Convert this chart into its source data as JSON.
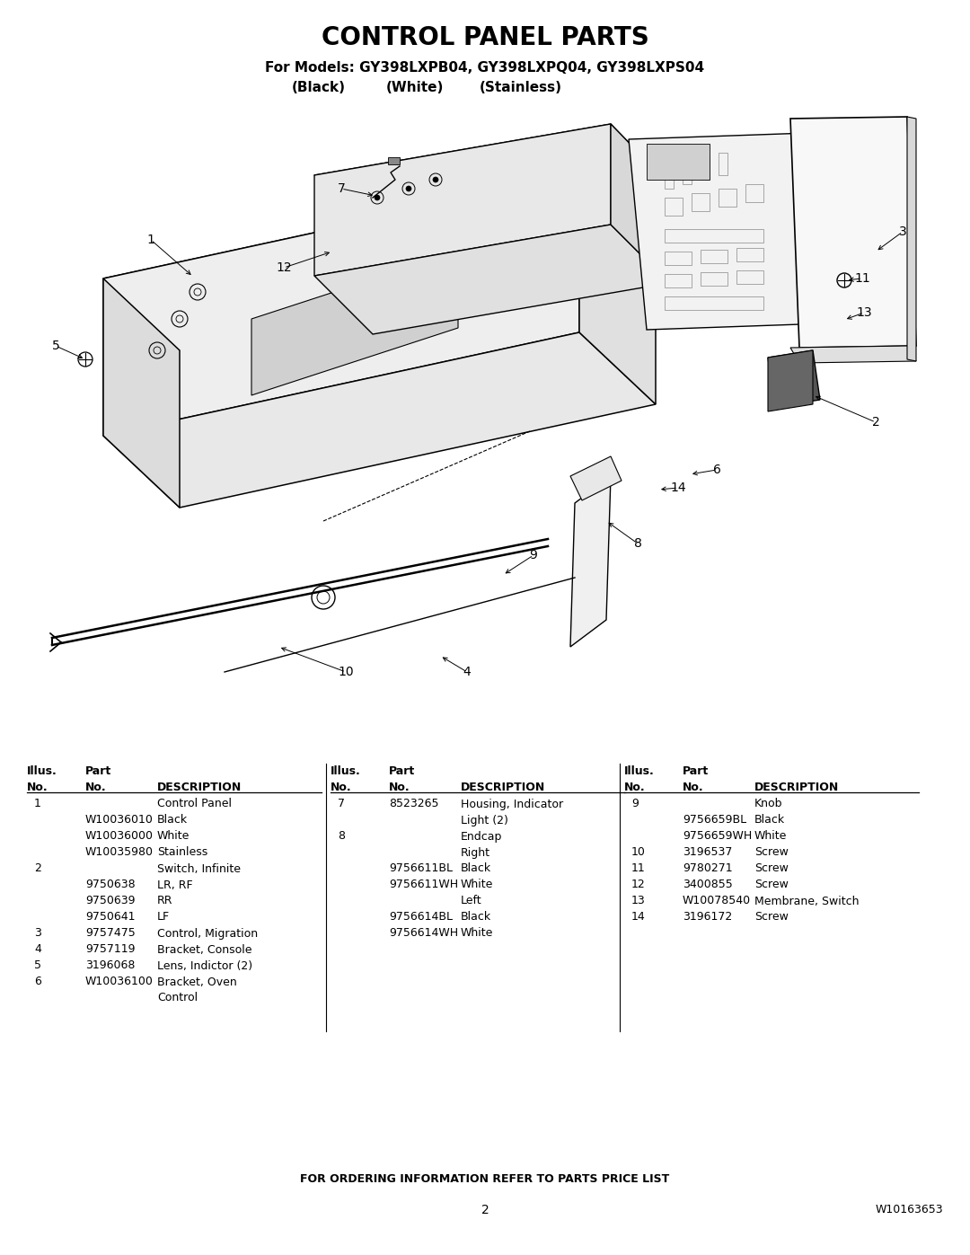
{
  "title": "CONTROL PANEL PARTS",
  "subtitle1": "For Models: GY398LXPB04, GY398LXPQ04, GY398LXPS04",
  "subtitle2_parts": [
    "(Black)",
    "(White)",
    "(Stainless)"
  ],
  "bg_color": "#ffffff",
  "title_fontsize": 20,
  "subtitle_fontsize": 11,
  "footer_text": "FOR ORDERING INFORMATION REFER TO PARTS PRICE LIST",
  "page_num": "2",
  "doc_num": "W10163653",
  "table_col1": [
    [
      "Illus.",
      "Part",
      ""
    ],
    [
      "No.",
      "No.",
      "DESCRIPTION"
    ],
    [
      "1",
      "",
      "Control Panel"
    ],
    [
      "",
      "W10036010",
      "Black"
    ],
    [
      "",
      "W10036000",
      "White"
    ],
    [
      "",
      "W10035980",
      "Stainless"
    ],
    [
      "2",
      "",
      "Switch, Infinite"
    ],
    [
      "",
      "9750638",
      "LR, RF"
    ],
    [
      "",
      "9750639",
      "RR"
    ],
    [
      "",
      "9750641",
      "LF"
    ],
    [
      "3",
      "9757475",
      "Control, Migration"
    ],
    [
      "4",
      "9757119",
      "Bracket, Console"
    ],
    [
      "5",
      "3196068",
      "Lens, Indictor (2)"
    ],
    [
      "6",
      "W10036100",
      "Bracket, Oven"
    ],
    [
      "",
      "",
      "Control"
    ]
  ],
  "table_col2": [
    [
      "Illus.",
      "Part",
      ""
    ],
    [
      "No.",
      "No.",
      "DESCRIPTION"
    ],
    [
      "7",
      "8523265",
      "Housing, Indicator"
    ],
    [
      "",
      "",
      "Light (2)"
    ],
    [
      "8",
      "",
      "Endcap"
    ],
    [
      "",
      "",
      "Right"
    ],
    [
      "",
      "9756611BL",
      "Black"
    ],
    [
      "",
      "9756611WH",
      "White"
    ],
    [
      "",
      "",
      "Left"
    ],
    [
      "",
      "9756614BL",
      "Black"
    ],
    [
      "",
      "9756614WH",
      "White"
    ]
  ],
  "table_col3": [
    [
      "Illus.",
      "Part",
      ""
    ],
    [
      "No.",
      "No.",
      "DESCRIPTION"
    ],
    [
      "9",
      "",
      "Knob"
    ],
    [
      "",
      "9756659BL",
      "Black"
    ],
    [
      "",
      "9756659WH",
      "White"
    ],
    [
      "10",
      "3196537",
      "Screw"
    ],
    [
      "11",
      "9780271",
      "Screw"
    ],
    [
      "12",
      "3400855",
      "Screw"
    ],
    [
      "13",
      "W10078540",
      "Membrane, Switch"
    ],
    [
      "14",
      "3196172",
      "Screw"
    ]
  ]
}
